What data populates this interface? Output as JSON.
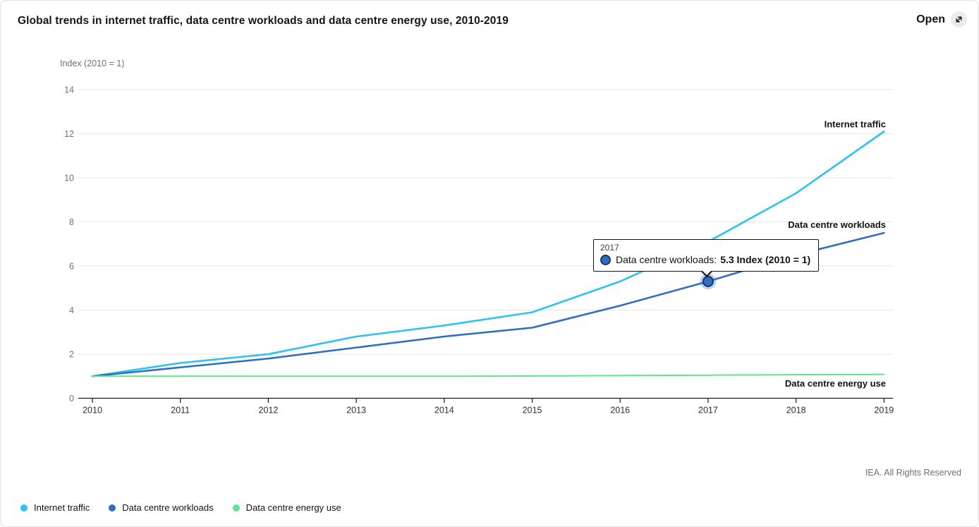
{
  "header": {
    "open_label": "Open",
    "open_icon": "expand-arrow-icon"
  },
  "footer": {
    "copyright": "IEA. All Rights Reserved"
  },
  "tooltip": {
    "year": "2017",
    "series": "Data centre workloads",
    "label": "Data centre workloads:",
    "value_text": "5.3 Index (2010 = 1)",
    "marker_color": "#2f6ec3",
    "marker_border": "#16375f"
  },
  "chart_data": {
    "type": "line",
    "title": "Global trends in internet traffic, data centre workloads and data centre energy use, 2010-2019",
    "ylabel": "Index (2010 = 1)",
    "xlabel": "",
    "x": [
      2010,
      2011,
      2012,
      2013,
      2014,
      2015,
      2016,
      2017,
      2018,
      2019
    ],
    "ylim": [
      0,
      14
    ],
    "ytick_step": 2,
    "grid": "horizontal",
    "legend_position": "bottom-left",
    "end_labels": true,
    "series": [
      {
        "name": "Internet traffic",
        "color": "#2cc2f2",
        "values": [
          1.0,
          1.6,
          2.0,
          2.8,
          3.3,
          3.9,
          5.3,
          7.1,
          9.3,
          12.1
        ]
      },
      {
        "name": "Data centre workloads",
        "color": "#2f6ec3",
        "values": [
          1.0,
          1.4,
          1.8,
          2.3,
          2.8,
          3.2,
          4.2,
          5.3,
          6.5,
          7.5
        ]
      },
      {
        "name": "Data centre energy use",
        "color": "#61e28c",
        "values": [
          1.0,
          1.0,
          1.0,
          1.0,
          1.0,
          1.01,
          1.03,
          1.05,
          1.07,
          1.08
        ]
      }
    ]
  }
}
